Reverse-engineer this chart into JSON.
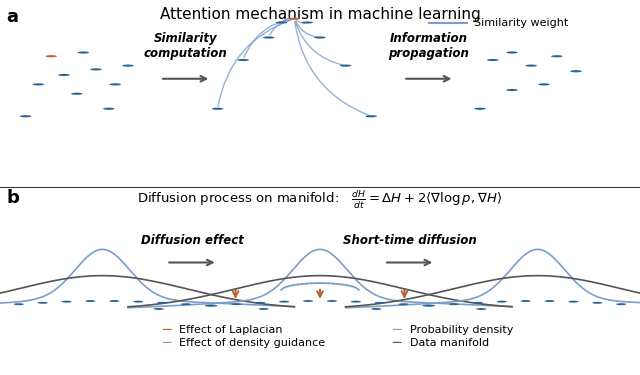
{
  "fig_width": 6.4,
  "fig_height": 3.75,
  "dpi": 100,
  "background_color": "#ffffff",
  "panel_a_title": "Attention mechanism in machine learning",
  "panel_b_formula": "Diffusion process on manifold:   $\\frac{dH}{dt} = \\Delta H + 2\\langle \\nabla \\log p, \\nabla H\\rangle$",
  "dot_color_blue": "#2a6496",
  "dot_color_orange": "#c0622a",
  "curve_color_blue": "#7b9ec9",
  "arrow_color_gray": "#555555",
  "arrow_color_orange": "#c0622a",
  "manifold_color": "#555555",
  "density_color": "#7b9ec9",
  "density_guidance_color": "#7b9ec9",
  "label_a": "a",
  "label_b": "b",
  "similarity_weight_label": "Similarity weight",
  "similarity_computation_label": "Similarity\ncomputation",
  "information_propagation_label": "Information\npropagation",
  "diffusion_effect_label": "Diffusion effect",
  "short_time_diffusion_label": "Short-time diffusion",
  "legend_items": [
    {
      "label": "Effect of Laplacian",
      "color": "#c0622a",
      "ls": "-"
    },
    {
      "label": "Effect of density guidance",
      "color": "#7b9ec9",
      "ls": "-"
    },
    {
      "label": "Probability density",
      "color": "#7b9ec9",
      "ls": "-"
    },
    {
      "label": "Data manifold",
      "color": "#555555",
      "ls": "-"
    }
  ]
}
